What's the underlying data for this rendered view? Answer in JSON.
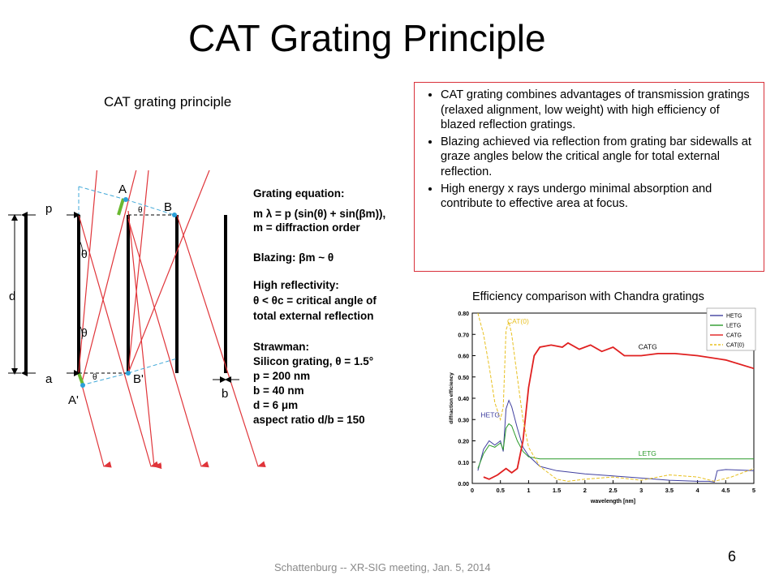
{
  "title": "CAT Grating Principle",
  "left_caption": "CAT grating principle",
  "bullets": [
    "CAT grating combines advantages of transmission gratings (relaxed alignment, low weight) with high efficiency of blazed reflection gratings.",
    "Blazing achieved via reflection from grating bar sidewalls at graze angles below the critical angle for total external reflection.",
    "High energy x rays undergo minimal absorption and contribute to effective area at focus."
  ],
  "diagram": {
    "labels": {
      "A": "A",
      "B": "B",
      "A_prime": "A'",
      "B_prime": "B'",
      "p": "p",
      "d": "d",
      "a": "a",
      "b": "b",
      "theta": "θ"
    },
    "notes": [
      {
        "text": "Grating equation:",
        "bold": true
      },
      {
        "text": "m λ = p (sin(θ) + sin(βm)),",
        "bold": false
      },
      {
        "text": "m = diffraction order",
        "bold": false
      },
      {
        "text": "",
        "bold": false
      },
      {
        "text": "Blazing: βm ~ θ",
        "bold": false
      },
      {
        "text": "",
        "bold": false
      },
      {
        "text": "High reflectivity:",
        "bold": true
      },
      {
        "text": "θ < θc = critical angle of",
        "bold": true
      },
      {
        "text": "total external reflection",
        "bold": true
      },
      {
        "text": "",
        "bold": false
      },
      {
        "text": "Strawman:",
        "bold": false
      },
      {
        "text": "Silicon grating, θ = 1.5°",
        "bold": false
      },
      {
        "text": "p = 200 nm",
        "bold": false
      },
      {
        "text": "b = 40 nm",
        "bold": false
      },
      {
        "text": "d = 6 μm",
        "bold": false
      },
      {
        "text": "aspect ratio d/b = 150",
        "bold": false
      }
    ]
  },
  "right_caption": "Efficiency comparison with Chandra gratings",
  "footer": "Schattenburg -- XR-SIG meeting, Jan. 5, 2014",
  "page_number": "6",
  "chart_data": {
    "type": "line",
    "xlabel": "wavelength [nm]",
    "ylabel": "diffraction efficiency",
    "xlim": [
      0,
      5
    ],
    "ylim": [
      0,
      0.8
    ],
    "xticks": [
      "0",
      "0.5",
      "1",
      "1.5",
      "2",
      "2.5",
      "3",
      "3.5",
      "4",
      "4.5",
      "5"
    ],
    "yticks": [
      "0.00",
      "0.10",
      "0.20",
      "0.30",
      "0.40",
      "0.50",
      "0.60",
      "0.70",
      "0.80"
    ],
    "legend": [
      "HETG",
      "LETG",
      "CATG",
      "CAT(0)"
    ],
    "legend_position": "top-right",
    "annotations": [
      {
        "text": "CAT(0)",
        "x": 0.62,
        "y": 0.75
      },
      {
        "text": "CATG",
        "x": 2.95,
        "y": 0.63
      },
      {
        "text": "HETG",
        "x": 0.15,
        "y": 0.31
      },
      {
        "text": "LETG",
        "x": 2.95,
        "y": 0.13
      }
    ],
    "series": [
      {
        "name": "HETG",
        "color": "#4040a0",
        "points": [
          [
            0.1,
            0.06
          ],
          [
            0.2,
            0.16
          ],
          [
            0.3,
            0.2
          ],
          [
            0.4,
            0.18
          ],
          [
            0.5,
            0.2
          ],
          [
            0.55,
            0.15
          ],
          [
            0.6,
            0.35
          ],
          [
            0.65,
            0.39
          ],
          [
            0.7,
            0.36
          ],
          [
            0.8,
            0.26
          ],
          [
            0.9,
            0.17
          ],
          [
            1.0,
            0.13
          ],
          [
            1.2,
            0.08
          ],
          [
            1.5,
            0.06
          ],
          [
            2.0,
            0.045
          ],
          [
            2.5,
            0.035
          ],
          [
            3.0,
            0.025
          ],
          [
            3.5,
            0.015
          ],
          [
            4.0,
            0.01
          ],
          [
            4.2,
            0.01
          ],
          [
            4.3,
            0.006
          ],
          [
            4.35,
            0.06
          ],
          [
            4.5,
            0.065
          ],
          [
            5.0,
            0.06
          ]
        ]
      },
      {
        "name": "LETG",
        "color": "#2a9a2a",
        "points": [
          [
            0.1,
            0.07
          ],
          [
            0.2,
            0.14
          ],
          [
            0.3,
            0.18
          ],
          [
            0.4,
            0.17
          ],
          [
            0.5,
            0.19
          ],
          [
            0.55,
            0.16
          ],
          [
            0.6,
            0.26
          ],
          [
            0.65,
            0.28
          ],
          [
            0.7,
            0.27
          ],
          [
            0.8,
            0.2
          ],
          [
            0.9,
            0.15
          ],
          [
            1.0,
            0.125
          ],
          [
            1.2,
            0.115
          ],
          [
            1.5,
            0.115
          ],
          [
            2.0,
            0.115
          ],
          [
            3.0,
            0.115
          ],
          [
            4.0,
            0.115
          ],
          [
            5.0,
            0.115
          ]
        ]
      },
      {
        "name": "CATG",
        "color": "#e02020",
        "points": [
          [
            0.2,
            0.03
          ],
          [
            0.3,
            0.02
          ],
          [
            0.45,
            0.04
          ],
          [
            0.6,
            0.07
          ],
          [
            0.7,
            0.05
          ],
          [
            0.8,
            0.07
          ],
          [
            0.9,
            0.2
          ],
          [
            1.0,
            0.45
          ],
          [
            1.1,
            0.6
          ],
          [
            1.2,
            0.64
          ],
          [
            1.4,
            0.65
          ],
          [
            1.6,
            0.64
          ],
          [
            1.7,
            0.66
          ],
          [
            1.9,
            0.63
          ],
          [
            2.1,
            0.65
          ],
          [
            2.3,
            0.62
          ],
          [
            2.5,
            0.64
          ],
          [
            2.7,
            0.6
          ],
          [
            3.0,
            0.6
          ],
          [
            3.3,
            0.61
          ],
          [
            3.6,
            0.61
          ],
          [
            4.0,
            0.6
          ],
          [
            4.5,
            0.58
          ],
          [
            5.0,
            0.54
          ]
        ]
      },
      {
        "name": "CAT(0)",
        "color": "#e8c020",
        "dashed": true,
        "points": [
          [
            0.1,
            0.8
          ],
          [
            0.2,
            0.7
          ],
          [
            0.3,
            0.55
          ],
          [
            0.4,
            0.38
          ],
          [
            0.5,
            0.3
          ],
          [
            0.55,
            0.36
          ],
          [
            0.6,
            0.72
          ],
          [
            0.65,
            0.76
          ],
          [
            0.7,
            0.7
          ],
          [
            0.8,
            0.5
          ],
          [
            0.9,
            0.3
          ],
          [
            1.0,
            0.17
          ],
          [
            1.2,
            0.08
          ],
          [
            1.5,
            0.02
          ],
          [
            1.7,
            0.01
          ],
          [
            2.0,
            0.02
          ],
          [
            2.5,
            0.03
          ],
          [
            3.0,
            0.015
          ],
          [
            3.5,
            0.04
          ],
          [
            4.0,
            0.03
          ],
          [
            4.3,
            0.01
          ],
          [
            4.6,
            0.03
          ],
          [
            5.0,
            0.07
          ]
        ]
      }
    ]
  }
}
